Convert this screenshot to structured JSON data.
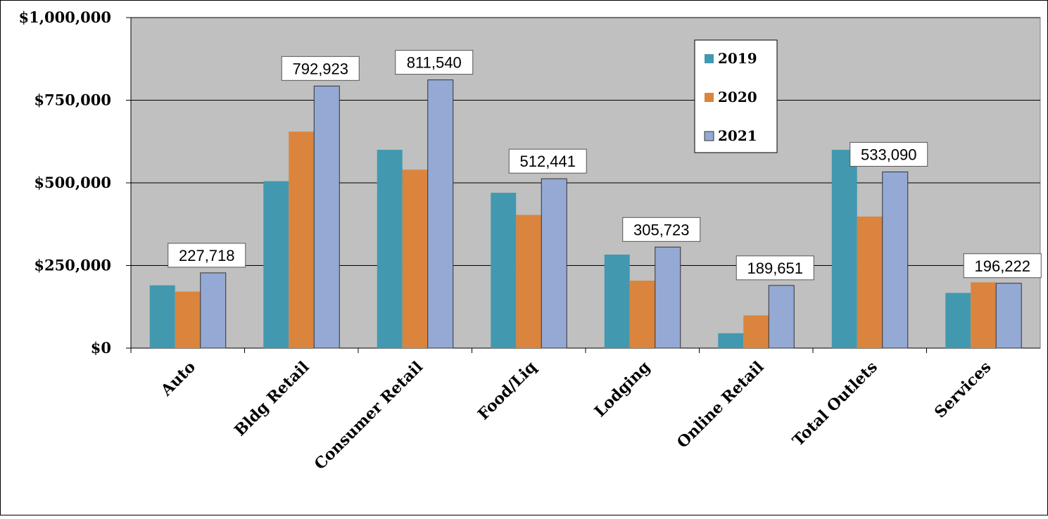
{
  "chart_data": {
    "type": "bar",
    "categories": [
      "Auto",
      "Bldg Retail",
      "Consumer Retail",
      "Food/Liq",
      "Lodging",
      "Online Retail",
      "Total Outlets",
      "Services"
    ],
    "series": [
      {
        "name": "2019",
        "color": "#4299AF",
        "values": [
          190000,
          505000,
          600000,
          470000,
          283000,
          45000,
          600000,
          167000
        ]
      },
      {
        "name": "2020",
        "color": "#DB843D",
        "values": [
          171000,
          655000,
          540000,
          403000,
          204000,
          99000,
          398000,
          199000
        ]
      },
      {
        "name": "2021",
        "color": "#95A9D5",
        "values": [
          227718,
          792923,
          811540,
          512441,
          305723,
          189651,
          533090,
          196222
        ]
      }
    ],
    "data_labels": [
      "227,718",
      "792,923",
      "811,540",
      "512,441",
      "305,723",
      "189,651",
      "533,090",
      "196,222"
    ],
    "yticks": [
      "$0",
      "$250,000",
      "$500,000",
      "$750,000",
      "$1,000,000"
    ],
    "ylim": [
      0,
      1000000
    ],
    "grid": true,
    "legend_position": "top-right-inside",
    "plot_background": "#C0C0C0",
    "title": "",
    "xlabel": "",
    "ylabel": ""
  }
}
